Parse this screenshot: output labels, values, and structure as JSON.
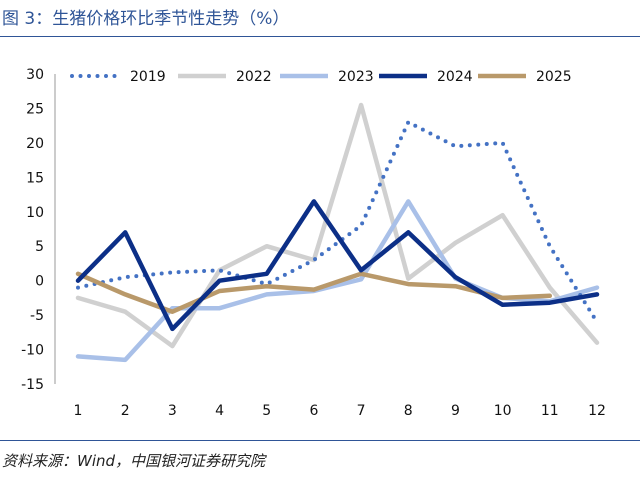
{
  "figure_title": "图 3：生猪价格环比季节性走势（%）",
  "source_note": "资料来源：Wind，中国银河证券研究院",
  "chart_data": {
    "type": "line",
    "title": "生猪价格环比季节性走势（%）",
    "xlabel": "",
    "ylabel": "",
    "categories": [
      "1",
      "2",
      "3",
      "4",
      "5",
      "6",
      "7",
      "8",
      "9",
      "10",
      "11",
      "12"
    ],
    "ylim": [
      -15,
      30
    ],
    "yticks": [
      "30",
      "25",
      "20",
      "15",
      "10",
      "5",
      "0",
      "-5",
      "-10",
      "-15"
    ],
    "legend_position": "top",
    "series": [
      {
        "name": "2019",
        "color": "#4472c4",
        "style": "dotted",
        "values": [
          -1,
          0.5,
          1.2,
          1.5,
          -0.5,
          3,
          8,
          23,
          19.5,
          20,
          5,
          -6
        ]
      },
      {
        "name": "2022",
        "color": "#d0d0d0",
        "style": "solid",
        "values": [
          -2.5,
          -4.5,
          -9.5,
          1.5,
          5,
          3,
          25.5,
          0.3,
          5.5,
          9.5,
          -1,
          -9
        ]
      },
      {
        "name": "2023",
        "color": "#a9c0e8",
        "style": "solid",
        "values": [
          -11,
          -11.5,
          -4,
          -4,
          -2,
          -1.5,
          0.2,
          11.5,
          0.3,
          -2.5,
          -3,
          -1
        ]
      },
      {
        "name": "2024",
        "color": "#0c2f87",
        "style": "solid",
        "values": [
          0,
          7,
          -7,
          0,
          1,
          11.5,
          1.5,
          7,
          0.5,
          -3.5,
          -3.2,
          -2
        ]
      },
      {
        "name": "2025",
        "color": "#b9996a",
        "style": "solid",
        "values": [
          1,
          -2,
          -4.5,
          -1.5,
          -0.8,
          -1.3,
          1,
          -0.5,
          -0.8,
          -2.5,
          -2.2,
          null
        ]
      }
    ]
  }
}
